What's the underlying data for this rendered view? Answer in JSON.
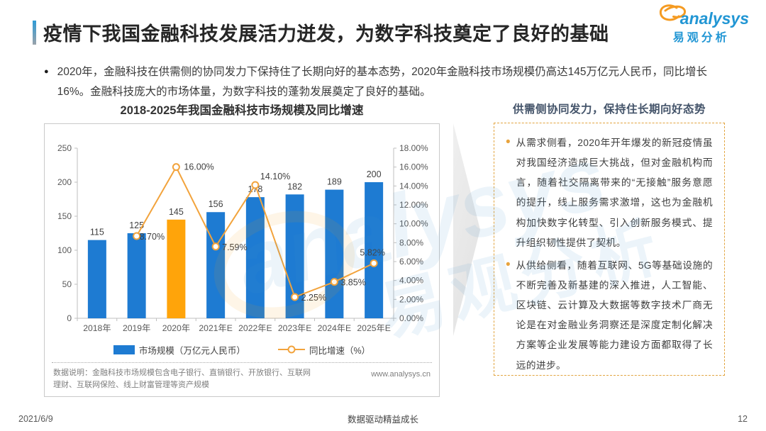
{
  "header": {
    "title": "疫情下我国金融科技发展活力迸发，为数字科技奠定了良好的基础",
    "logo": {
      "brand": "analysys",
      "brand_cn": "易观分析"
    }
  },
  "summary": {
    "bullet": "2020年，金融科技在供需侧的协同发力下保持住了长期向好的基本态势，2020年金融科技市场规模仍高达145万亿元人民币，同比增长16%。金融科技庞大的市场体量，为数字科技的蓬勃发展奠定了良好的基础。"
  },
  "chart": {
    "title": "2018-2025年我国金融科技市场规模及同比增速",
    "footnote": "数据说明：金融科技市场规模包含电子银行、直销银行、开放银行、互联网理财、互联网保险、线上财富管理等资产规模",
    "source_url": "www.analysys.cn"
  },
  "chart_data": {
    "type": "bar+line",
    "title": "2018-2025年我国金融科技市场规模及同比增速",
    "categories": [
      "2018年",
      "2019年",
      "2020年",
      "2021年E",
      "2022年E",
      "2023年E",
      "2024年E",
      "2025年E"
    ],
    "series": [
      {
        "name": "市场规模（万亿元人民币）",
        "type": "bar",
        "axis": "left",
        "values": [
          115,
          125,
          145,
          156,
          178,
          182,
          189,
          200
        ],
        "color": "#1e7bd2",
        "highlight_index": 2,
        "highlight_color": "#ffa40a"
      },
      {
        "name": "同比增速（%）",
        "type": "line",
        "axis": "right",
        "values": [
          null,
          8.7,
          16.0,
          7.59,
          14.1,
          2.25,
          3.85,
          5.82
        ],
        "point_labels": [
          "",
          "8.70%",
          "16.00%",
          "7.59%",
          "14.10%",
          "2.25%",
          "3.85%",
          "5.82%"
        ],
        "color": "#f2a33c"
      }
    ],
    "left_axis": {
      "min": 0,
      "max": 250,
      "step": 50,
      "ticks": [
        "0",
        "50",
        "100",
        "150",
        "200",
        "250"
      ]
    },
    "right_axis": {
      "min": 0,
      "max": 18,
      "step": 2,
      "ticks": [
        "0.00%",
        "2.00%",
        "4.00%",
        "6.00%",
        "8.00%",
        "10.00%",
        "12.00%",
        "14.00%",
        "16.00%",
        "18.00%"
      ]
    },
    "grid": false,
    "legend_position": "bottom"
  },
  "insight": {
    "heading": "供需侧协同发力，保持住长期向好态势",
    "bullets": [
      "从需求侧看，2020年开年爆发的新冠疫情虽对我国经济造成巨大挑战，但对金融机构而言，随着社交隔离带来的“无接触”服务意愿的提升，线上服务需求激增，这也为金融机构加快数字化转型、引入创新服务模式、提升组织韧性提供了契机。",
      "从供给侧看，随着互联网、5G等基础设施的不断完善及新基建的深入推进，人工智能、区块链、云计算及大数据等数字技术厂商无论是在对金融业务洞察还是深度定制化解决方案等企业发展等能力建设方面都取得了长远的进步。"
    ]
  },
  "footer": {
    "date": "2021/6/9",
    "center_text": "数据驱动精益成长",
    "page_number": "12"
  },
  "colors": {
    "bar_blue": "#1e7bd2",
    "bar_highlight_orange": "#ffa40a",
    "line_orange": "#f2a33c",
    "brand_blue": "#2196d4",
    "heading_blue_gray": "#44546a",
    "dashed_border_orange": "#e2a43f",
    "axis_gray": "#bfbfbf"
  }
}
